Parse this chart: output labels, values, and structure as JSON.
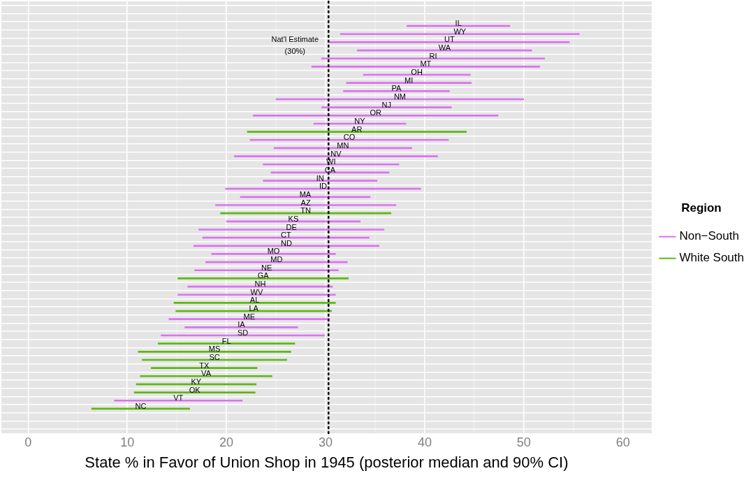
{
  "chart_data": {
    "type": "bar",
    "orientation": "horizontal",
    "xlabel": "State % in Favor of Union Shop in 1945 (posterior median and 90% CI)",
    "legend_title": "Region",
    "legend": "right",
    "grid": true,
    "tick_labels": "x",
    "categories": [
      null,
      null,
      null,
      null,
      null,
      null,
      null,
      null,
      null,
      null,
      null,
      null,
      null,
      null,
      null,
      null,
      null,
      null,
      null,
      null,
      null,
      null,
      null,
      null,
      null,
      null,
      null,
      null,
      null,
      null,
      null,
      null,
      null,
      null,
      null,
      null,
      null,
      null,
      null,
      null,
      null,
      null,
      null,
      null,
      null,
      null,
      null,
      null,
      null,
      null,
      null,
      null
    ],
    "xlim": [
      -2.7,
      62.9
    ],
    "xticks": [
      0,
      10,
      20,
      30,
      40,
      50,
      60
    ],
    "ref_lines": [
      {
        "axis": "x",
        "value": 30.3,
        "label": "Nat'l Estimate (30%)",
        "line_style": "dotted",
        "color": "#000000"
      }
    ],
    "series": [
      {
        "name": "Non−South",
        "color": "#dc72f2",
        "base": [
          null,
          null,
          38.2,
          31.5,
          30.4,
          33.2,
          29.6,
          28.6,
          33.8,
          32.1,
          31.8,
          25.0,
          29.6,
          22.7,
          28.8,
          null,
          22.4,
          24.8,
          20.8,
          23.7,
          24.5,
          23.7,
          19.9,
          21.4,
          18.9,
          null,
          20.0,
          17.2,
          17.6,
          16.7,
          18.5,
          17.9,
          16.8,
          null,
          16.1,
          15.1,
          null,
          null,
          14.2,
          15.8,
          13.4,
          null,
          null,
          null,
          null,
          null,
          null,
          null,
          8.7,
          null,
          null,
          null
        ],
        "values": [
          null,
          null,
          10.4,
          24.1,
          24.2,
          17.6,
          22.5,
          23.0,
          10.8,
          12.6,
          10.7,
          25.0,
          13.1,
          24.7,
          9.3,
          null,
          20.0,
          13.9,
          20.5,
          13.7,
          11.9,
          11.5,
          19.7,
          13.1,
          18.2,
          null,
          13.5,
          18.7,
          16.8,
          18.7,
          12.5,
          14.3,
          14.5,
          null,
          14.6,
          15.9,
          null,
          null,
          16.2,
          11.4,
          16.5,
          null,
          null,
          null,
          null,
          null,
          null,
          null,
          12.9,
          null,
          null,
          null
        ],
        "value_labels": [
          null,
          null,
          "IL",
          "WY",
          "UT",
          "WA",
          "RI",
          "MT",
          "OH",
          "MI",
          "PA",
          "NM",
          "NJ",
          "OR",
          "NY",
          null,
          "CO",
          "MN",
          "NV",
          "WI",
          "CA",
          "IN",
          "ID",
          "MA",
          "AZ",
          null,
          "KS",
          "DE",
          "CT",
          "ND",
          "MO",
          "MD",
          "NE",
          null,
          "NH",
          "WV",
          null,
          null,
          "ME",
          "IA",
          "SD",
          null,
          null,
          null,
          null,
          null,
          null,
          null,
          "VT",
          null,
          null,
          null
        ]
      },
      {
        "name": "White South",
        "color": "#5cb811",
        "base": [
          null,
          null,
          null,
          null,
          null,
          null,
          null,
          null,
          null,
          null,
          null,
          null,
          null,
          null,
          null,
          22.1,
          null,
          null,
          null,
          null,
          null,
          null,
          null,
          null,
          null,
          19.4,
          null,
          null,
          null,
          null,
          null,
          null,
          null,
          15.1,
          null,
          null,
          14.7,
          14.9,
          null,
          null,
          null,
          13.1,
          11.1,
          11.5,
          12.4,
          11.3,
          10.9,
          10.7,
          null,
          6.4,
          null,
          null
        ],
        "values": [
          null,
          null,
          null,
          null,
          null,
          null,
          null,
          null,
          null,
          null,
          null,
          null,
          null,
          null,
          null,
          22.1,
          null,
          null,
          null,
          null,
          null,
          null,
          null,
          null,
          null,
          17.2,
          null,
          null,
          null,
          null,
          null,
          null,
          null,
          17.2,
          null,
          null,
          16.3,
          15.7,
          null,
          null,
          null,
          13.8,
          15.4,
          14.6,
          10.7,
          13.3,
          12.1,
          12.2,
          null,
          9.9,
          null,
          null
        ],
        "value_labels": [
          null,
          null,
          null,
          null,
          null,
          null,
          null,
          null,
          null,
          null,
          null,
          null,
          null,
          null,
          null,
          "AR",
          null,
          null,
          null,
          null,
          null,
          null,
          null,
          null,
          null,
          "TN",
          null,
          null,
          null,
          null,
          null,
          null,
          null,
          "GA",
          null,
          null,
          "AL",
          "LA",
          null,
          null,
          null,
          "FL",
          "MS",
          "SC",
          "TX",
          "VA",
          "KY",
          "OK",
          null,
          "NC",
          null,
          null
        ]
      }
    ]
  }
}
